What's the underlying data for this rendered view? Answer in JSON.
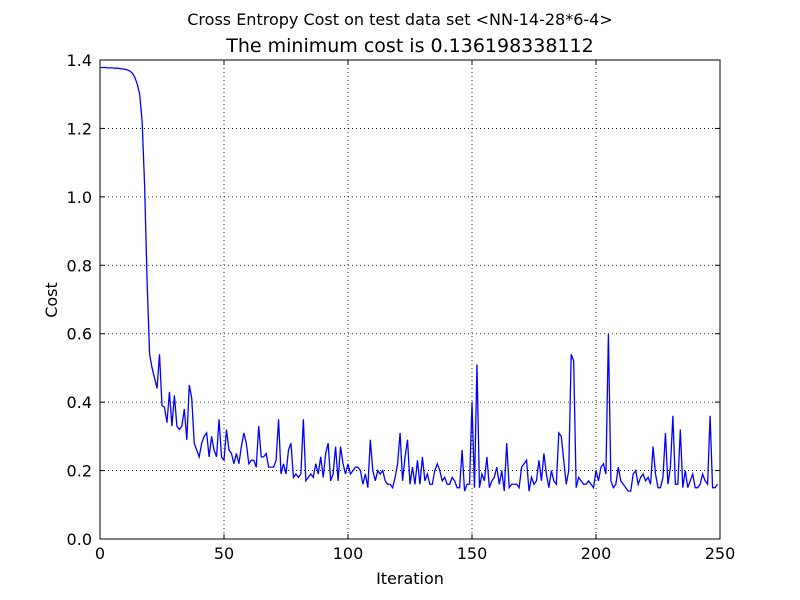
{
  "chart_data": {
    "type": "line",
    "suptitle": "Cross Entropy Cost on test data set <NN-14-28*6-4>",
    "title": "The minimum cost is 0.136198338112",
    "x_label": "Iteration",
    "y_label": "Cost",
    "color": "#0000ff",
    "grid": true,
    "xlim": [
      0,
      250
    ],
    "ylim": [
      0,
      1.4
    ],
    "xticks": [
      0,
      50,
      100,
      150,
      200,
      250
    ],
    "yticks": [
      {
        "value": 0,
        "label": "0.0"
      },
      0.2,
      0.4,
      0.6,
      0.8,
      {
        "value": 1,
        "label": "1.0"
      },
      1.2,
      1.4
    ],
    "x": [
      0,
      1,
      2,
      3,
      4,
      5,
      6,
      7,
      8,
      9,
      10,
      11,
      12,
      13,
      14,
      15,
      16,
      17,
      18,
      19,
      20,
      21,
      22,
      23,
      24,
      25,
      26,
      27,
      28,
      29,
      30,
      31,
      32,
      33,
      34,
      35,
      36,
      37,
      38,
      39,
      40,
      41,
      42,
      43,
      44,
      45,
      46,
      47,
      48,
      49,
      50,
      51,
      52,
      53,
      54,
      55,
      56,
      57,
      58,
      59,
      60,
      61,
      62,
      63,
      64,
      65,
      66,
      67,
      68,
      69,
      70,
      71,
      72,
      73,
      74,
      75,
      76,
      77,
      78,
      79,
      80,
      81,
      82,
      83,
      84,
      85,
      86,
      87,
      88,
      89,
      90,
      91,
      92,
      93,
      94,
      95,
      96,
      97,
      98,
      99,
      100,
      101,
      102,
      103,
      104,
      105,
      106,
      107,
      108,
      109,
      110,
      111,
      112,
      113,
      114,
      115,
      116,
      117,
      118,
      119,
      120,
      121,
      122,
      123,
      124,
      125,
      126,
      127,
      128,
      129,
      130,
      131,
      132,
      133,
      134,
      135,
      136,
      137,
      138,
      139,
      140,
      141,
      142,
      143,
      144,
      145,
      146,
      147,
      148,
      149,
      150,
      151,
      152,
      153,
      154,
      155,
      156,
      157,
      158,
      159,
      160,
      161,
      162,
      163,
      164,
      165,
      166,
      167,
      168,
      169,
      170,
      171,
      172,
      173,
      174,
      175,
      176,
      177,
      178,
      179,
      180,
      181,
      182,
      183,
      184,
      185,
      186,
      187,
      188,
      189,
      190,
      191,
      192,
      193,
      194,
      195,
      196,
      197,
      198,
      199,
      200,
      201,
      202,
      203,
      204,
      205,
      206,
      207,
      208,
      209,
      210,
      211,
      212,
      213,
      214,
      215,
      216,
      217,
      218,
      219,
      220,
      221,
      222,
      223,
      224,
      225,
      226,
      227,
      228,
      229,
      230,
      231,
      232,
      233,
      234,
      235,
      236,
      237,
      238,
      239,
      240,
      241,
      242,
      243,
      244,
      245,
      246,
      247,
      248,
      249
    ],
    "values": [
      1.378,
      1.378,
      1.378,
      1.377,
      1.377,
      1.377,
      1.376,
      1.376,
      1.375,
      1.374,
      1.373,
      1.371,
      1.368,
      1.362,
      1.35,
      1.33,
      1.3,
      1.22,
      1.03,
      0.75,
      0.54,
      0.5,
      0.47,
      0.44,
      0.54,
      0.39,
      0.385,
      0.34,
      0.43,
      0.33,
      0.42,
      0.33,
      0.32,
      0.33,
      0.38,
      0.29,
      0.45,
      0.41,
      0.28,
      0.26,
      0.24,
      0.28,
      0.3,
      0.31,
      0.24,
      0.3,
      0.26,
      0.24,
      0.35,
      0.24,
      0.23,
      0.32,
      0.26,
      0.25,
      0.22,
      0.25,
      0.22,
      0.27,
      0.31,
      0.28,
      0.22,
      0.23,
      0.23,
      0.21,
      0.33,
      0.24,
      0.24,
      0.25,
      0.21,
      0.21,
      0.21,
      0.23,
      0.35,
      0.19,
      0.22,
      0.19,
      0.26,
      0.28,
      0.18,
      0.19,
      0.18,
      0.19,
      0.35,
      0.17,
      0.18,
      0.19,
      0.18,
      0.22,
      0.19,
      0.24,
      0.18,
      0.25,
      0.28,
      0.17,
      0.19,
      0.27,
      0.17,
      0.27,
      0.22,
      0.19,
      0.22,
      0.19,
      0.2,
      0.21,
      0.21,
      0.2,
      0.16,
      0.19,
      0.15,
      0.29,
      0.2,
      0.17,
      0.2,
      0.19,
      0.2,
      0.17,
      0.16,
      0.16,
      0.15,
      0.18,
      0.22,
      0.31,
      0.17,
      0.24,
      0.29,
      0.16,
      0.21,
      0.16,
      0.23,
      0.16,
      0.24,
      0.17,
      0.19,
      0.16,
      0.16,
      0.2,
      0.22,
      0.2,
      0.17,
      0.18,
      0.16,
      0.16,
      0.18,
      0.17,
      0.15,
      0.15,
      0.26,
      0.14,
      0.16,
      0.16,
      0.4,
      0.15,
      0.51,
      0.15,
      0.19,
      0.17,
      0.24,
      0.15,
      0.17,
      0.18,
      0.21,
      0.16,
      0.2,
      0.14,
      0.28,
      0.15,
      0.16,
      0.16,
      0.16,
      0.15,
      0.21,
      0.22,
      0.23,
      0.14,
      0.18,
      0.16,
      0.17,
      0.23,
      0.17,
      0.25,
      0.19,
      0.15,
      0.2,
      0.17,
      0.16,
      0.31,
      0.3,
      0.23,
      0.16,
      0.2,
      0.54,
      0.52,
      0.15,
      0.18,
      0.17,
      0.16,
      0.16,
      0.17,
      0.16,
      0.15,
      0.2,
      0.17,
      0.21,
      0.22,
      0.19,
      0.6,
      0.17,
      0.15,
      0.16,
      0.21,
      0.17,
      0.16,
      0.15,
      0.14,
      0.14,
      0.19,
      0.2,
      0.16,
      0.18,
      0.19,
      0.17,
      0.18,
      0.16,
      0.27,
      0.19,
      0.15,
      0.15,
      0.18,
      0.31,
      0.16,
      0.21,
      0.36,
      0.16,
      0.16,
      0.32,
      0.15,
      0.2,
      0.15,
      0.17,
      0.19,
      0.15,
      0.15,
      0.16,
      0.19,
      0.17,
      0.16,
      0.36,
      0.15,
      0.15,
      0.16
    ]
  }
}
